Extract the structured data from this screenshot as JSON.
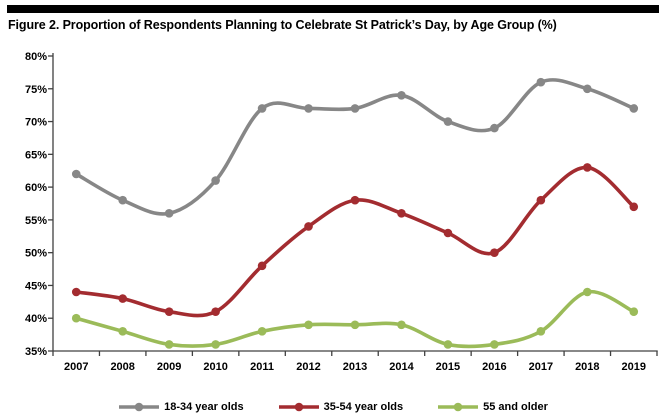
{
  "chart_data": {
    "type": "line",
    "title": "Figure 2. Proportion of Respondents Planning to Celebrate St Patrick’s Day, by Age Group (%)",
    "x": [
      "2007",
      "2008",
      "2009",
      "2010",
      "2011",
      "2012",
      "2013",
      "2014",
      "2015",
      "2016",
      "2017",
      "2018",
      "2019"
    ],
    "series": [
      {
        "name": "18-34 year olds",
        "color": "#878787",
        "values": [
          62,
          58,
          56,
          61,
          72,
          72,
          72,
          74,
          70,
          69,
          76,
          75,
          72
        ]
      },
      {
        "name": "35-54 year olds",
        "color": "#A32C30",
        "values": [
          44,
          43,
          41,
          41,
          48,
          54,
          58,
          56,
          53,
          50,
          58,
          63,
          57
        ]
      },
      {
        "name": "55 and older",
        "color": "#9BBB59",
        "values": [
          40,
          38,
          36,
          36,
          38,
          39,
          39,
          39,
          36,
          36,
          38,
          44,
          41
        ]
      }
    ],
    "xlabel": "",
    "ylabel": "",
    "ylim": [
      35,
      80
    ],
    "ytick_step": 5,
    "ytick_suffix": "%",
    "grid": false,
    "legend_position": "bottom",
    "line_style": "smooth",
    "marker": "circle",
    "axis_color": "#404040",
    "background_color": "#FFFFFF",
    "title_bar_color": "#000000"
  }
}
